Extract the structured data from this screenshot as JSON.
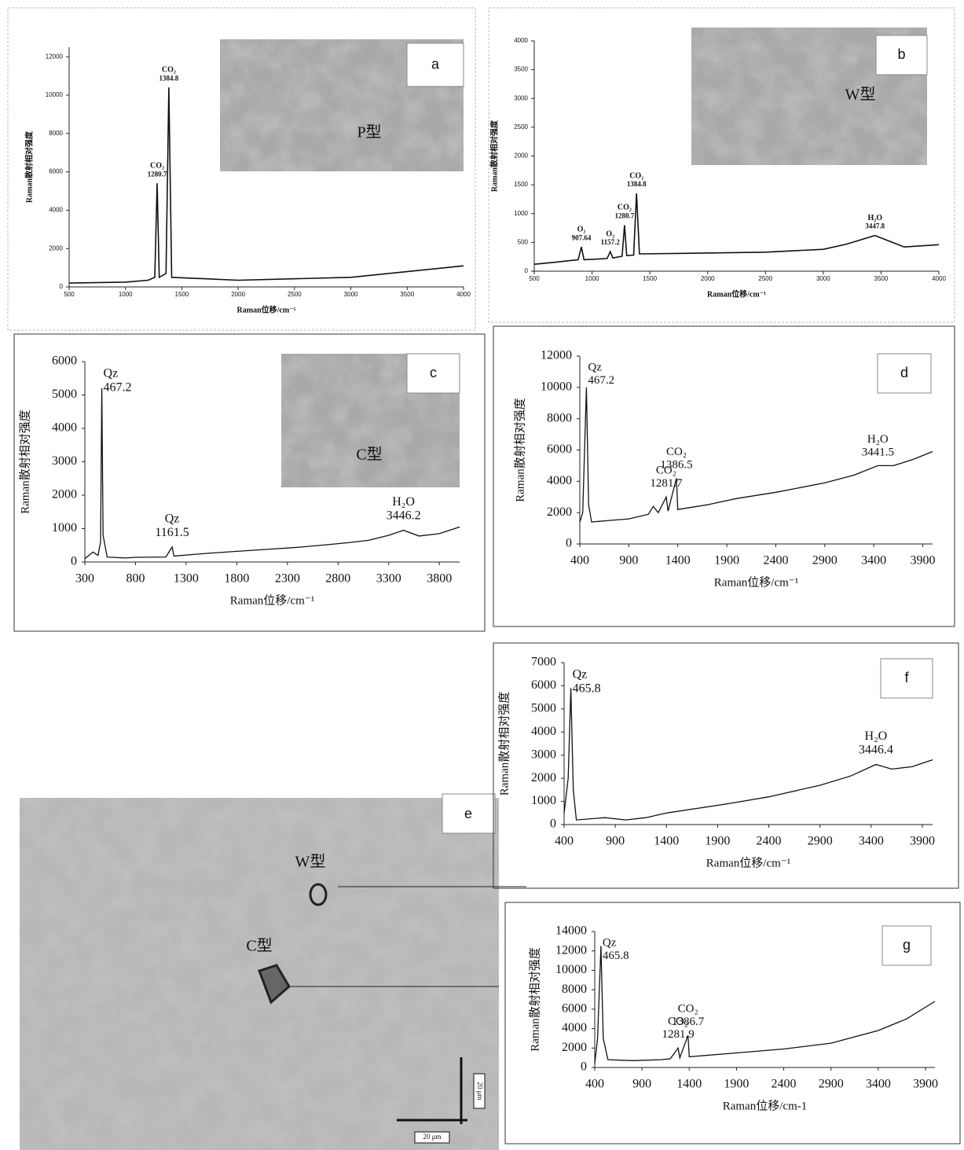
{
  "chart_data": [
    {
      "type": "line",
      "panel": "a",
      "x_label": "Raman位移/cm⁻¹",
      "y_label": "Raman散射相对强度",
      "xlim": [
        500,
        4000
      ],
      "ylim": [
        0,
        12500
      ],
      "xticks": [
        500,
        1000,
        1500,
        2000,
        2500,
        3000,
        3500,
        4000
      ],
      "yticks": [
        0,
        2000,
        4000,
        6000,
        8000,
        10000,
        12000
      ],
      "x": [
        500,
        1000,
        1200,
        1260,
        1280.7,
        1300,
        1360,
        1384.8,
        1410,
        2000,
        3000,
        4000
      ],
      "values": [
        200,
        250,
        350,
        500,
        5400,
        500,
        700,
        10400,
        500,
        350,
        500,
        1100
      ],
      "annotations": [
        {
          "name": "CO₂",
          "x": 1280.7
        },
        {
          "name": "CO₂",
          "x": 1384.8
        }
      ],
      "inset_label": "P型"
    },
    {
      "type": "line",
      "panel": "b",
      "x_label": "Raman位移/cm⁻¹",
      "y_label": "Raman散射相对强度",
      "xlim": [
        500,
        4000
      ],
      "ylim": [
        0,
        4000
      ],
      "xticks": [
        500,
        1000,
        1500,
        2000,
        2500,
        3000,
        3500,
        4000
      ],
      "yticks": [
        0,
        500,
        1000,
        1500,
        2000,
        2500,
        3000,
        3500,
        4000
      ],
      "x": [
        500,
        700,
        880,
        907.64,
        930,
        1130,
        1157.2,
        1180,
        1260,
        1280.7,
        1300,
        1360,
        1384.8,
        1410,
        1800,
        2500,
        3000,
        3200,
        3447.8,
        3700,
        4000
      ],
      "values": [
        120,
        160,
        200,
        420,
        200,
        220,
        340,
        230,
        260,
        800,
        270,
        280,
        1350,
        300,
        310,
        330,
        380,
        470,
        620,
        420,
        460
      ],
      "annotations": [
        {
          "name": "O₂",
          "x": 907.64
        },
        {
          "name": "O₂",
          "x": 1157.2
        },
        {
          "name": "CO₂",
          "x": 1280.7
        },
        {
          "name": "CO₂",
          "x": 1384.8
        },
        {
          "name": "H₂O",
          "x": 3447.8
        }
      ],
      "inset_label": "W型"
    },
    {
      "type": "line",
      "panel": "c",
      "x_label": "Raman位移/cm⁻¹",
      "y_label": "Raman散射相对强度",
      "xlim": [
        300,
        4000
      ],
      "ylim": [
        0,
        6000
      ],
      "xticks": [
        300,
        800,
        1300,
        1800,
        2300,
        2800,
        3300,
        3800
      ],
      "yticks": [
        0,
        1000,
        2000,
        3000,
        4000,
        5000,
        6000
      ],
      "x": [
        300,
        380,
        430,
        455,
        467.2,
        480,
        520,
        700,
        800,
        1100,
        1161.5,
        1180,
        1500,
        1800,
        2100,
        2400,
        2700,
        2900,
        3100,
        3300,
        3446.2,
        3600,
        3800,
        4000
      ],
      "values": [
        100,
        300,
        200,
        600,
        5200,
        800,
        150,
        120,
        140,
        150,
        450,
        180,
        260,
        320,
        380,
        440,
        520,
        580,
        650,
        800,
        950,
        780,
        850,
        1050
      ],
      "annotations": [
        {
          "name": "Qz",
          "x": 467.2
        },
        {
          "name": "Qz",
          "x": 1161.5
        },
        {
          "name": "H₂O",
          "x": 3446.2
        }
      ],
      "inset_label": "C型"
    },
    {
      "type": "line",
      "panel": "d",
      "x_label": "Raman位移/cm⁻¹",
      "y_label": "Raman散射相对强度",
      "xlim": [
        400,
        4000
      ],
      "ylim": [
        0,
        12000
      ],
      "xticks": [
        400,
        900,
        1400,
        1900,
        2400,
        2900,
        3400,
        3900
      ],
      "yticks": [
        0,
        2000,
        4000,
        6000,
        8000,
        10000,
        12000
      ],
      "x": [
        400,
        430,
        467.2,
        490,
        520,
        700,
        900,
        1100,
        1150,
        1200,
        1281.7,
        1300,
        1386.5,
        1400,
        1700,
        2000,
        2400,
        2900,
        3200,
        3441.5,
        3600,
        3800,
        4000
      ],
      "values": [
        1400,
        2000,
        10000,
        2500,
        1400,
        1500,
        1600,
        1900,
        2400,
        2000,
        3000,
        2100,
        4200,
        2200,
        2500,
        2900,
        3300,
        3900,
        4400,
        5000,
        5000,
        5400,
        5900
      ],
      "annotations": [
        {
          "name": "Qz",
          "x": 467.2
        },
        {
          "name": "CO₂",
          "x": 1281.7
        },
        {
          "name": "CO₂",
          "x": 1386.5
        },
        {
          "name": "H₂O",
          "x": 3441.5
        }
      ]
    },
    {
      "type": "line",
      "panel": "f",
      "x_label": "Raman位移/cm⁻¹",
      "y_label": "Raman散射相对强度",
      "xlim": [
        400,
        4000
      ],
      "ylim": [
        0,
        7000
      ],
      "xticks": [
        400,
        900,
        1400,
        1900,
        2400,
        2900,
        3400,
        3900
      ],
      "yticks": [
        0,
        1000,
        2000,
        3000,
        4000,
        5000,
        6000,
        7000
      ],
      "x": [
        400,
        440,
        465.8,
        490,
        520,
        800,
        1000,
        1200,
        1400,
        1700,
        2000,
        2400,
        2900,
        3200,
        3446.4,
        3600,
        3800,
        4000
      ],
      "values": [
        500,
        2000,
        5900,
        1500,
        200,
        300,
        200,
        300,
        500,
        700,
        900,
        1200,
        1700,
        2100,
        2600,
        2400,
        2500,
        2800
      ],
      "annotations": [
        {
          "name": "Qz",
          "x": 465.8
        },
        {
          "name": "H₂O",
          "x": 3446.4
        }
      ]
    },
    {
      "type": "line",
      "panel": "g",
      "x_label": "Raman位移/cm-1",
      "y_label": "Raman散射相对强度",
      "xlim": [
        400,
        4000
      ],
      "ylim": [
        0,
        14000
      ],
      "xticks": [
        400,
        900,
        1400,
        1900,
        2400,
        2900,
        3400,
        3900
      ],
      "yticks": [
        0,
        2000,
        4000,
        6000,
        8000,
        10000,
        12000,
        14000
      ],
      "x": [
        400,
        430,
        465.8,
        490,
        540,
        800,
        1100,
        1200,
        1281.9,
        1300,
        1386.7,
        1400,
        1900,
        2400,
        2900,
        3400,
        3700,
        4000
      ],
      "values": [
        400,
        3000,
        12500,
        3000,
        800,
        700,
        800,
        900,
        2000,
        1000,
        3300,
        1100,
        1500,
        1900,
        2500,
        3800,
        5000,
        6800
      ],
      "annotations": [
        {
          "name": "Qz",
          "x": 465.8
        },
        {
          "name": "CO₂",
          "x": 1281.9
        },
        {
          "name": "CO₂",
          "x": 1386.7
        }
      ]
    }
  ],
  "photo": {
    "panel": "e",
    "labels": [
      "W型",
      "C型"
    ],
    "scale_bars": [
      "20 μm",
      "20 μm"
    ]
  }
}
